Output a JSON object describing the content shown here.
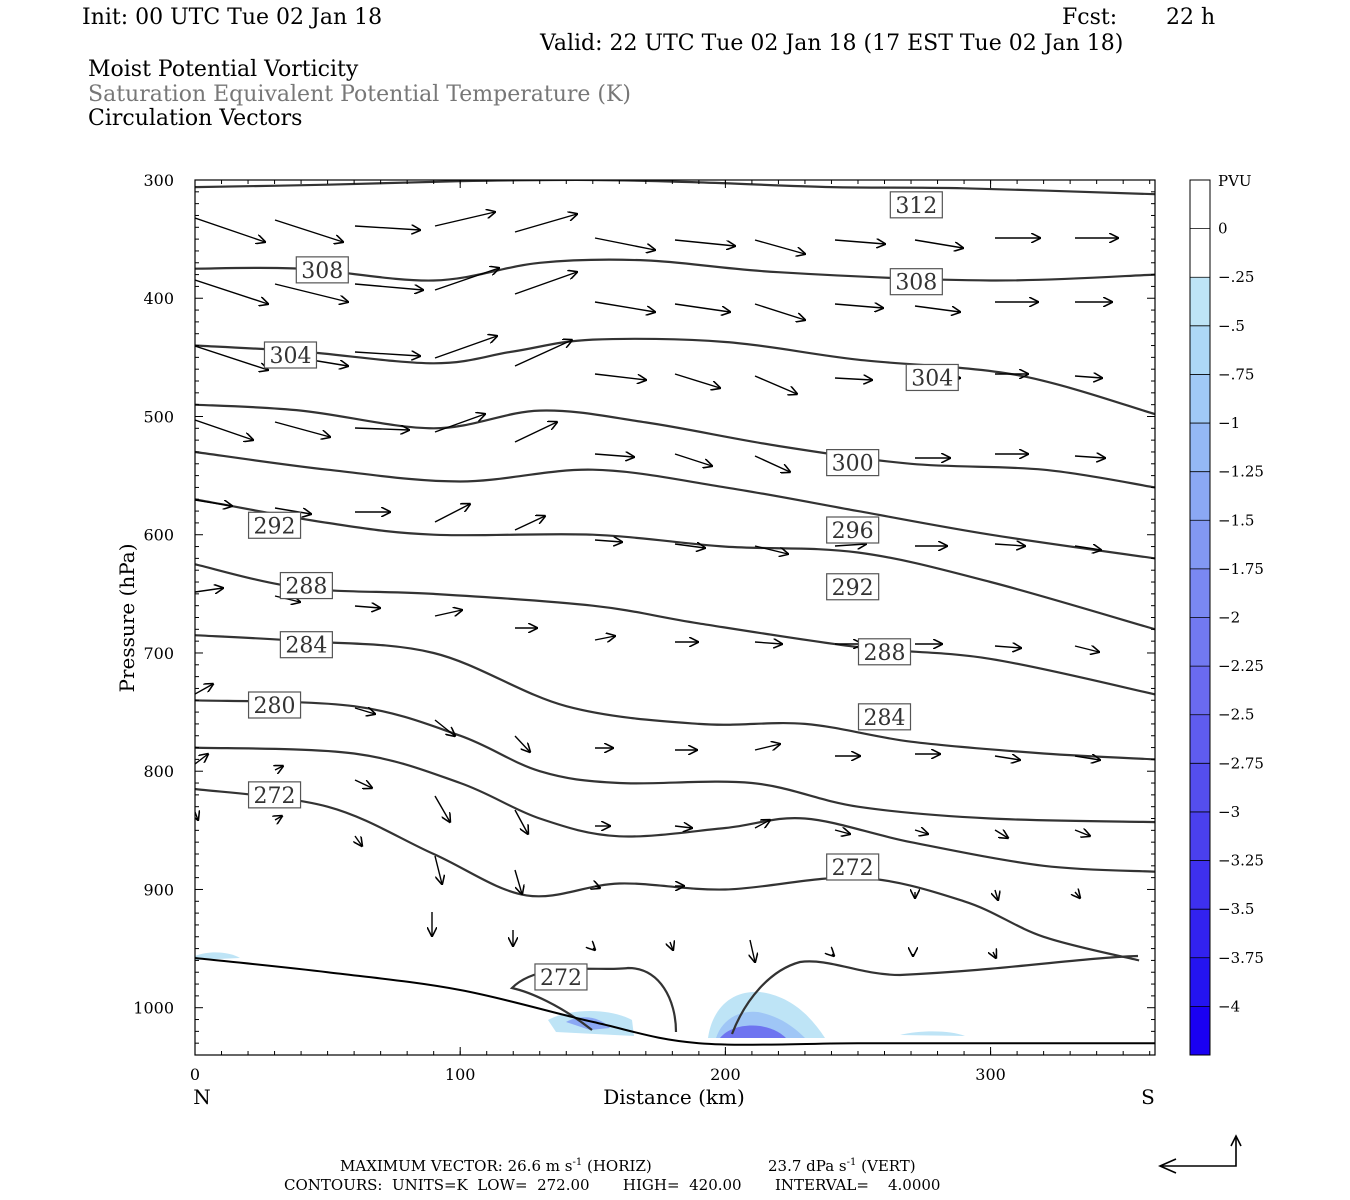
{
  "header": {
    "init": "Init: 00 UTC Tue 02 Jan 18",
    "fcst_label": "Fcst:",
    "fcst_value": "22 h",
    "valid": "Valid: 22 UTC Tue 02 Jan 18 (17 EST Tue 02 Jan 18)",
    "field1": "Moist Potential Vorticity",
    "field2": "Saturation Equivalent Potential Temperature (K)",
    "field3": "Circulation Vectors"
  },
  "chart_data": {
    "type": "contour",
    "xlabel": "Distance (km)",
    "ylabel": "Pressure (hPa)",
    "xlim": [
      0,
      362
    ],
    "ylim": [
      300,
      1040
    ],
    "x_ticks": [
      0,
      100,
      200,
      300
    ],
    "y_ticks": [
      300,
      400,
      500,
      600,
      700,
      800,
      900,
      1000
    ],
    "x_end_labels": [
      "N",
      "S"
    ],
    "contour_units": "K",
    "contour_interval": 4,
    "contour_lines": [
      {
        "value": 312,
        "points": [
          [
            0,
            306
          ],
          [
            50,
            304
          ],
          [
            100,
            301
          ],
          [
            150,
            300
          ],
          [
            190,
            302
          ],
          [
            240,
            306
          ],
          [
            290,
            307
          ],
          [
            362,
            312
          ]
        ]
      },
      {
        "value": 308,
        "points": [
          [
            0,
            375
          ],
          [
            40,
            375
          ],
          [
            90,
            385
          ],
          [
            130,
            370
          ],
          [
            170,
            368
          ],
          [
            220,
            378
          ],
          [
            300,
            385
          ],
          [
            362,
            380
          ]
        ]
      },
      {
        "value": 304,
        "points": [
          [
            0,
            440
          ],
          [
            40,
            445
          ],
          [
            90,
            455
          ],
          [
            120,
            445
          ],
          [
            150,
            435
          ],
          [
            200,
            437
          ],
          [
            250,
            452
          ],
          [
            310,
            465
          ],
          [
            362,
            498
          ]
        ]
      },
      {
        "value": 300,
        "points": [
          [
            0,
            490
          ],
          [
            40,
            495
          ],
          [
            90,
            510
          ],
          [
            130,
            495
          ],
          [
            170,
            505
          ],
          [
            220,
            525
          ],
          [
            270,
            540
          ],
          [
            320,
            545
          ],
          [
            362,
            560
          ]
        ]
      },
      {
        "value": "",
        "points": [
          [
            0,
            530
          ],
          [
            50,
            545
          ],
          [
            100,
            555
          ],
          [
            150,
            545
          ],
          [
            200,
            560
          ],
          [
            250,
            580
          ],
          [
            300,
            600
          ],
          [
            362,
            620
          ]
        ]
      },
      {
        "value": 296,
        "points": [
          [
            0,
            570
          ],
          [
            50,
            590
          ],
          [
            90,
            600
          ],
          [
            150,
            600
          ],
          [
            200,
            610
          ],
          [
            250,
            615
          ],
          [
            300,
            640
          ],
          [
            362,
            680
          ]
        ]
      },
      {
        "value": 292,
        "points": [
          [
            0,
            625
          ],
          [
            40,
            645
          ],
          [
            90,
            650
          ],
          [
            150,
            660
          ],
          [
            190,
            675
          ],
          [
            250,
            695
          ],
          [
            300,
            705
          ],
          [
            362,
            735
          ]
        ]
      },
      {
        "value": 288,
        "points": [
          [
            0,
            685
          ],
          [
            40,
            690
          ],
          [
            90,
            700
          ],
          [
            140,
            745
          ],
          [
            190,
            760
          ],
          [
            230,
            760
          ],
          [
            270,
            775
          ],
          [
            320,
            785
          ],
          [
            362,
            790
          ]
        ]
      },
      {
        "value": 284,
        "points": [
          [
            0,
            740
          ],
          [
            60,
            745
          ],
          [
            100,
            770
          ],
          [
            130,
            800
          ],
          [
            160,
            810
          ],
          [
            210,
            810
          ],
          [
            250,
            830
          ],
          [
            300,
            840
          ],
          [
            362,
            843
          ]
        ]
      },
      {
        "value": 280,
        "points": [
          [
            0,
            780
          ],
          [
            60,
            785
          ],
          [
            100,
            810
          ],
          [
            130,
            840
          ],
          [
            160,
            855
          ],
          [
            200,
            848
          ],
          [
            230,
            840
          ],
          [
            270,
            860
          ],
          [
            320,
            880
          ],
          [
            362,
            885
          ]
        ]
      },
      {
        "value": 272,
        "points": [
          [
            0,
            815
          ],
          [
            50,
            830
          ],
          [
            90,
            870
          ],
          [
            125,
            905
          ],
          [
            160,
            895
          ],
          [
            200,
            900
          ],
          [
            250,
            890
          ],
          [
            290,
            910
          ],
          [
            320,
            940
          ],
          [
            356,
            960
          ]
        ]
      }
    ],
    "contour_labels": [
      {
        "text": "312",
        "x": 272,
        "y": 321
      },
      {
        "text": "308",
        "x": 48,
        "y": 376
      },
      {
        "text": "308",
        "x": 272,
        "y": 386
      },
      {
        "text": "304",
        "x": 36,
        "y": 448
      },
      {
        "text": "304",
        "x": 278,
        "y": 467
      },
      {
        "text": "300",
        "x": 248,
        "y": 539
      },
      {
        "text": "296",
        "x": 248,
        "y": 596
      },
      {
        "text": "292",
        "x": 30,
        "y": 592
      },
      {
        "text": "292",
        "x": 248,
        "y": 644
      },
      {
        "text": "288",
        "x": 42,
        "y": 643
      },
      {
        "text": "288",
        "x": 260,
        "y": 699
      },
      {
        "text": "284",
        "x": 42,
        "y": 693
      },
      {
        "text": "284",
        "x": 260,
        "y": 754
      },
      {
        "text": "280",
        "x": 30,
        "y": 744
      },
      {
        "text": "272",
        "x": 30,
        "y": 820
      },
      {
        "text": "272",
        "x": 248,
        "y": 881
      },
      {
        "text": "272",
        "x": 138,
        "y": 974
      }
    ],
    "shaded_field": {
      "name": "Moist Potential Vorticity",
      "units": "PVU",
      "levels": [
        "0",
        "-.25",
        "-.5",
        "-.75",
        "-1",
        "-1.25",
        "-1.5",
        "-1.75",
        "-2",
        "-2.25",
        "-2.5",
        "-2.75",
        "-3",
        "-3.25",
        "-3.5",
        "-3.75",
        "-4"
      ],
      "colors": [
        "#ffffff",
        "#ffffff",
        "#bee4f6",
        "#add8f6",
        "#a0c9f6",
        "#94b8f5",
        "#8ba8f4",
        "#8298f3",
        "#7a88f2",
        "#7279f1",
        "#6a6af0",
        "#5f5cef",
        "#544eee",
        "#4a40ee",
        "#3e30ee",
        "#3222ef",
        "#2414f0",
        "#1a00f2"
      ]
    },
    "terrain": [
      [
        0,
        958
      ],
      [
        50,
        970
      ],
      [
        100,
        985
      ],
      [
        150,
        1012
      ],
      [
        190,
        1030
      ],
      [
        250,
        1030
      ],
      [
        300,
        1030
      ],
      [
        362,
        1030
      ]
    ],
    "vector_scale": {
      "max_horiz": "MAXIMUM VECTOR:  26.6 m s",
      "horiz_unit": "(HORIZ)",
      "max_vert": "23.7 dPa s",
      "vert_unit": "(VERT)",
      "exp": "-1"
    },
    "contours_info": "CONTOURS:  UNITS=K  LOW=  272.00       HIGH=  420.00       INTERVAL=    4.0000"
  }
}
